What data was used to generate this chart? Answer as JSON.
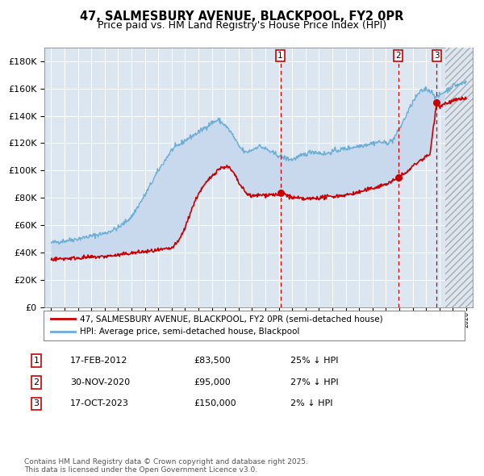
{
  "title": "47, SALMESBURY AVENUE, BLACKPOOL, FY2 0PR",
  "subtitle": "Price paid vs. HM Land Registry's House Price Index (HPI)",
  "background_color": "#dce6f1",
  "plot_bg_color": "#dce6f1",
  "fill_color": "#c9d9ee",
  "ylim": [
    0,
    190000
  ],
  "yticks": [
    0,
    20000,
    40000,
    60000,
    80000,
    100000,
    120000,
    140000,
    160000,
    180000
  ],
  "xlim_start": 1994.5,
  "xlim_end": 2026.5,
  "hpi_color": "#6baed6",
  "price_color": "#cc0000",
  "transaction_dates": [
    2012.12,
    2020.92,
    2023.79
  ],
  "transaction_prices": [
    83500,
    95000,
    150000
  ],
  "transaction_labels": [
    "1",
    "2",
    "3"
  ],
  "legend_label_price": "47, SALMESBURY AVENUE, BLACKPOOL, FY2 0PR (semi-detached house)",
  "legend_label_hpi": "HPI: Average price, semi-detached house, Blackpool",
  "table_rows": [
    [
      "1",
      "17-FEB-2012",
      "£83,500",
      "25% ↓ HPI"
    ],
    [
      "2",
      "30-NOV-2020",
      "£95,000",
      "27% ↓ HPI"
    ],
    [
      "3",
      "17-OCT-2023",
      "£150,000",
      "2% ↓ HPI"
    ]
  ],
  "footer": "Contains HM Land Registry data © Crown copyright and database right 2025.\nThis data is licensed under the Open Government Licence v3.0.",
  "hatch_start": 2024.42
}
